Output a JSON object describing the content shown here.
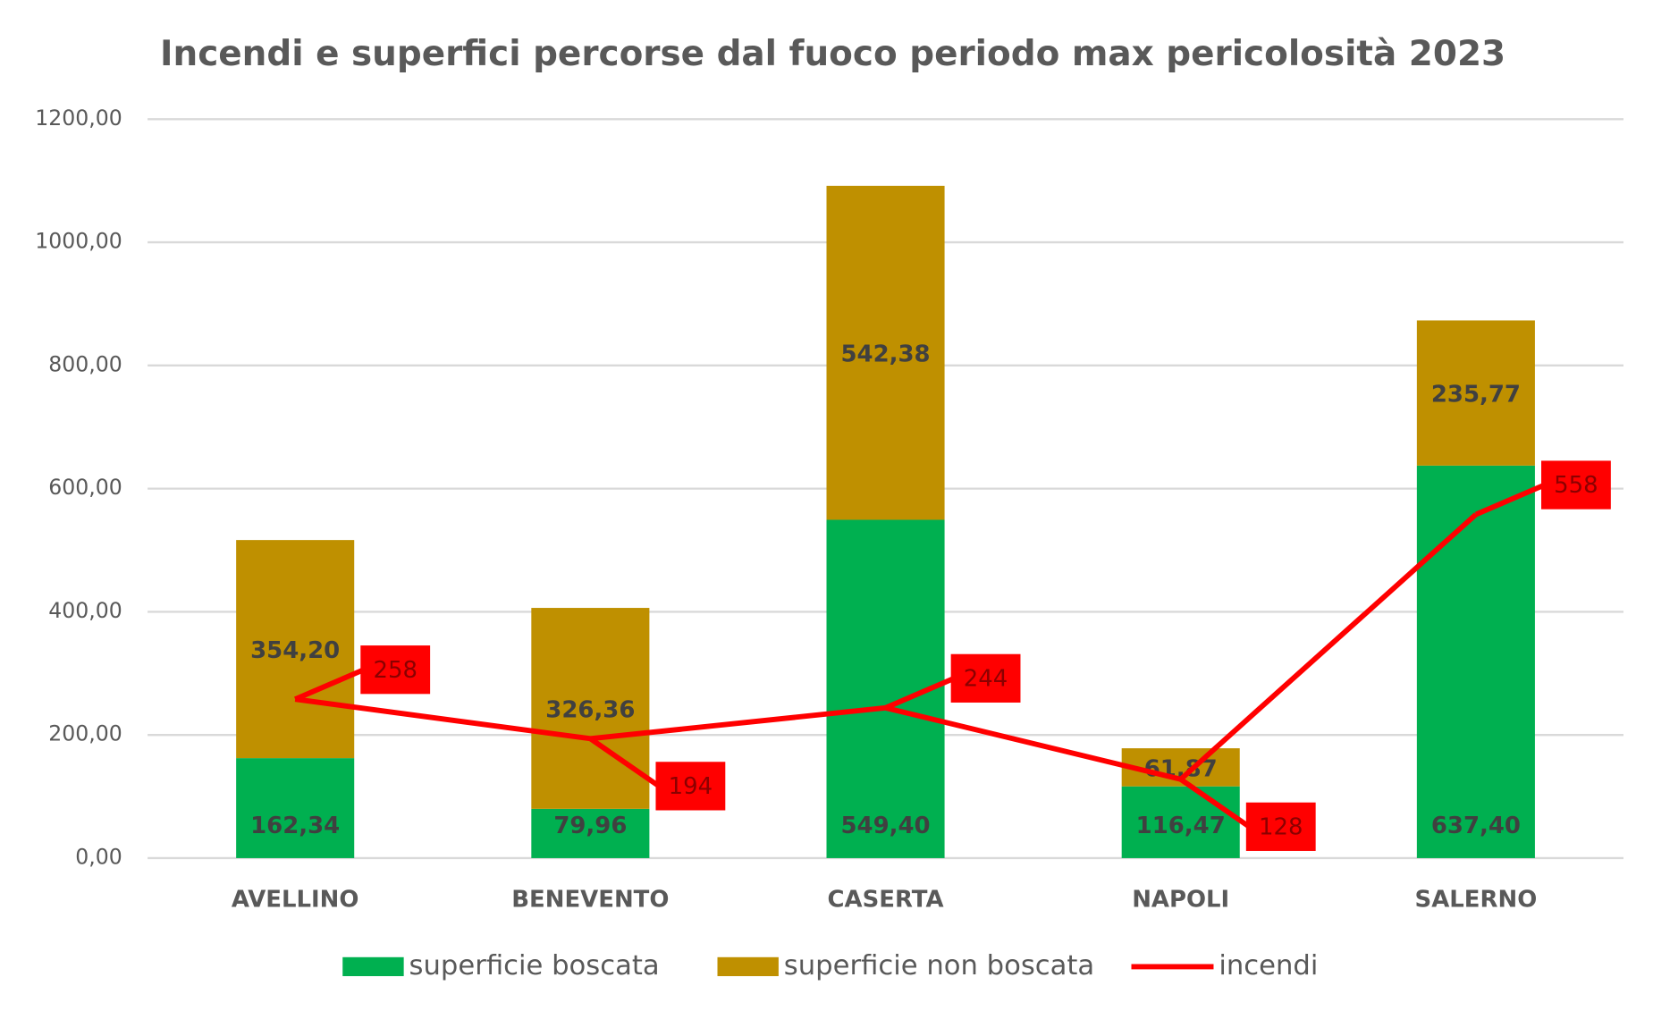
{
  "chart_data": {
    "type": "bar",
    "stacked": true,
    "title": "Incendi e superfici percorse dal fuoco periodo max pericolosità 2023",
    "categories": [
      "AVELLINO",
      "BENEVENTO",
      "CASERTA",
      "NAPOLI",
      "SALERNO"
    ],
    "series": [
      {
        "name": "superficie boscata",
        "color": "#00b050",
        "type": "bar",
        "values": [
          162.34,
          79.96,
          549.4,
          116.47,
          637.4
        ],
        "value_labels": [
          "162,34",
          "79,96",
          "549,40",
          "116,47",
          "637,40"
        ]
      },
      {
        "name": "superficie non boscata",
        "color": "#bf9000",
        "type": "bar",
        "values": [
          354.2,
          326.36,
          542.38,
          61.87,
          235.77
        ],
        "value_labels": [
          "354,20",
          "326,36",
          "542,38",
          "61,87",
          "235,77"
        ]
      },
      {
        "name": "incendi",
        "color": "#ff0000",
        "type": "line",
        "values": [
          258,
          194,
          244,
          128,
          558
        ]
      }
    ],
    "ylim": [
      0,
      1200
    ],
    "yticks": [
      {
        "value": 0,
        "label": "0,00"
      },
      {
        "value": 200,
        "label": "200,00"
      },
      {
        "value": 400,
        "label": "400,00"
      },
      {
        "value": 600,
        "label": "600,00"
      },
      {
        "value": 800,
        "label": "800,00"
      },
      {
        "value": 1000,
        "label": "1000,00"
      },
      {
        "value": 1200,
        "label": "1200,00"
      }
    ],
    "grid": true,
    "legend": "bottom"
  }
}
